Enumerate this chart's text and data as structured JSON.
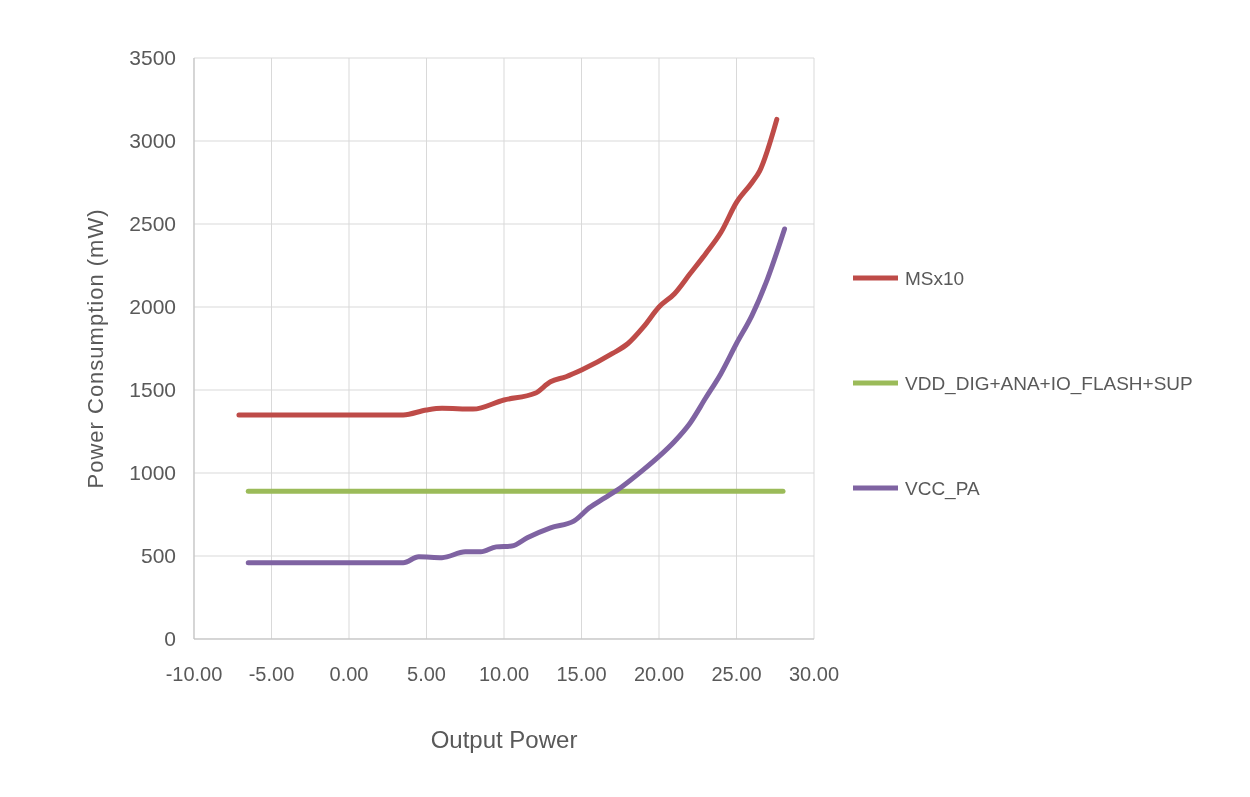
{
  "chart_data": {
    "type": "line",
    "xlabel": "Output Power",
    "ylabel": "Power Consumption (mW)",
    "xlim": [
      -10,
      30
    ],
    "ylim": [
      0,
      3500
    ],
    "xticks": [
      {
        "value": -10,
        "label": "-10.00"
      },
      {
        "value": -5,
        "label": "-5.00"
      },
      {
        "value": 0,
        "label": "0.00"
      },
      {
        "value": 5,
        "label": "5.00"
      },
      {
        "value": 10,
        "label": "10.00"
      },
      {
        "value": 15,
        "label": "15.00"
      },
      {
        "value": 20,
        "label": "20.00"
      },
      {
        "value": 25,
        "label": "25.00"
      },
      {
        "value": 30,
        "label": "30.00"
      }
    ],
    "yticks": [
      0,
      500,
      1000,
      1500,
      2000,
      2500,
      3000,
      3500
    ],
    "grid": true,
    "legend": "right",
    "marker": "none",
    "line_style": "solid",
    "series": [
      {
        "name": "MSx10",
        "color": "#be4b48",
        "x": [
          -7.1,
          -3,
          0,
          3.5,
          5,
          6,
          8,
          10,
          12,
          13,
          14,
          15,
          17,
          18,
          19,
          20,
          21,
          22,
          23,
          24,
          25,
          26,
          26.5,
          27.6
        ],
        "values": [
          1350,
          1350,
          1350,
          1350,
          1380,
          1390,
          1385,
          1440,
          1480,
          1550,
          1580,
          1620,
          1720,
          1780,
          1880,
          2000,
          2080,
          2200,
          2320,
          2450,
          2630,
          2750,
          2820,
          3130
        ]
      },
      {
        "name": "VDD_DIG+ANA+IO_FLASH+SUP",
        "color": "#9bbb59",
        "x": [
          -6.5,
          28
        ],
        "values": [
          890,
          890
        ]
      },
      {
        "name": "VCC_PA",
        "color": "#7f63a2",
        "x": [
          -6.5,
          0,
          3.5,
          4.5,
          6,
          7.5,
          8.5,
          9.5,
          10.5,
          11.5,
          13,
          14.5,
          15.5,
          16.5,
          17.5,
          19,
          20,
          21,
          22,
          23,
          24,
          25,
          26,
          27,
          28.1
        ],
        "values": [
          460,
          460,
          460,
          495,
          490,
          525,
          525,
          555,
          560,
          610,
          670,
          710,
          790,
          850,
          910,
          1020,
          1100,
          1190,
          1300,
          1450,
          1600,
          1780,
          1950,
          2170,
          2470
        ]
      }
    ]
  }
}
